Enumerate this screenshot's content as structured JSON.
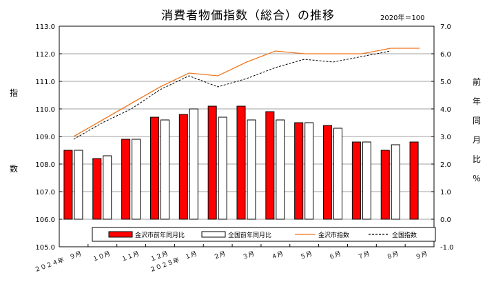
{
  "chart_data": {
    "type": "bar+line",
    "title": "消費者物価指数（総合）の推移",
    "base_note": "2020年＝100",
    "categories": [
      "２０２４年　９月",
      "１０月",
      "１１月",
      "１２月",
      "２０２５年　１月",
      "２月",
      "３月",
      "４月",
      "５月",
      "６月",
      "７月",
      "８月",
      "９月"
    ],
    "left_axis": {
      "label_chars": [
        "指",
        "数"
      ],
      "ylim": [
        105.0,
        113.0
      ],
      "ticks": [
        "105.0",
        "106.0",
        "107.0",
        "108.0",
        "109.0",
        "110.0",
        "111.0",
        "112.0",
        "113.0"
      ]
    },
    "right_axis": {
      "label_chars": [
        "前",
        "年",
        "同",
        "月",
        "比",
        "％"
      ],
      "ylim": [
        -1.0,
        7.0
      ],
      "ticks": [
        "-1.0",
        "0.0",
        "1.0",
        "2.0",
        "3.0",
        "4.0",
        "5.0",
        "6.0",
        "7.0"
      ]
    },
    "grid": "horizontal",
    "legend_position": "bottom-center",
    "series": [
      {
        "name": "金沢市前年同月比",
        "kind": "bar",
        "axis": "right",
        "color": "#ff0000",
        "values": [
          2.5,
          2.2,
          2.9,
          3.7,
          3.8,
          4.1,
          4.1,
          3.9,
          3.5,
          3.4,
          2.8,
          2.5,
          2.8
        ]
      },
      {
        "name": "全国前年同月比",
        "kind": "bar",
        "axis": "right",
        "color": "#ffffff",
        "values": [
          2.5,
          2.3,
          2.9,
          3.6,
          4.0,
          3.7,
          3.6,
          3.6,
          3.5,
          3.3,
          2.8,
          2.7,
          null
        ]
      },
      {
        "name": "金沢市指数",
        "kind": "line",
        "axis": "left",
        "color": "#f07820",
        "values": [
          109.0,
          109.6,
          110.2,
          110.8,
          111.3,
          111.2,
          111.7,
          112.1,
          112.0,
          112.0,
          112.0,
          112.2,
          112.2
        ]
      },
      {
        "name": "全国指数",
        "kind": "line",
        "axis": "left",
        "color": "#000000",
        "dashed": true,
        "values": [
          108.9,
          109.5,
          110.0,
          110.7,
          111.2,
          110.8,
          111.1,
          111.5,
          111.8,
          111.7,
          111.9,
          112.1,
          null
        ]
      }
    ]
  }
}
